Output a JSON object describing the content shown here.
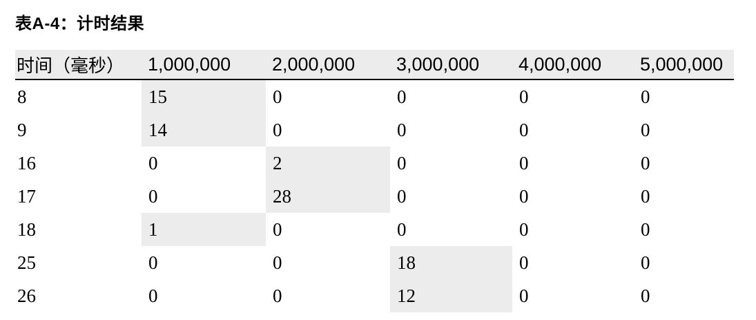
{
  "title": "表A-4：计时结果",
  "colors": {
    "page_bg": "#ffffff",
    "text": "#000000",
    "header_bg": "#ececec",
    "highlight_bg": "#ececec",
    "header_rule": "#000000"
  },
  "table": {
    "columns": [
      {
        "label": "时间（毫秒）"
      },
      {
        "label": "1,000,000"
      },
      {
        "label": "2,000,000"
      },
      {
        "label": "3,000,000"
      },
      {
        "label": "4,000,000"
      },
      {
        "label": "5,000,000"
      }
    ],
    "rows": [
      {
        "time": "8",
        "values": [
          "15",
          "0",
          "0",
          "0",
          "0"
        ],
        "highlighted_value_col": 1
      },
      {
        "time": "9",
        "values": [
          "14",
          "0",
          "0",
          "0",
          "0"
        ],
        "highlighted_value_col": 1
      },
      {
        "time": "16",
        "values": [
          "0",
          "2",
          "0",
          "0",
          "0"
        ],
        "highlighted_value_col": 2
      },
      {
        "time": "17",
        "values": [
          "0",
          "28",
          "0",
          "0",
          "0"
        ],
        "highlighted_value_col": 2
      },
      {
        "time": "18",
        "values": [
          "1",
          "0",
          "0",
          "0",
          "0"
        ],
        "highlighted_value_col": 1
      },
      {
        "time": "25",
        "values": [
          "0",
          "0",
          "18",
          "0",
          "0"
        ],
        "highlighted_value_col": 3
      },
      {
        "time": "26",
        "values": [
          "0",
          "0",
          "12",
          "0",
          "0"
        ],
        "highlighted_value_col": 3
      }
    ]
  }
}
